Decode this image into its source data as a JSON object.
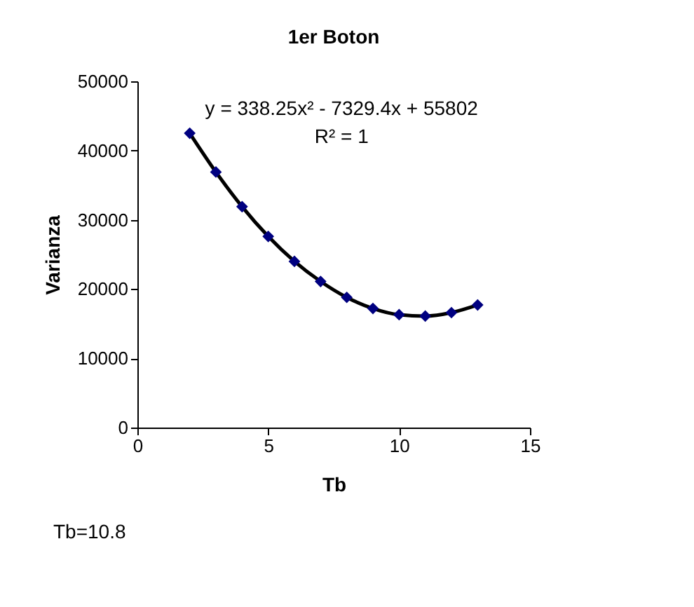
{
  "chart_data": {
    "type": "scatter",
    "title": "1er Boton",
    "xlabel": "Tb",
    "ylabel": "Varianza",
    "annotations": [
      "y = 338.25x² - 7329.4x + 55802",
      "R² = 1",
      "Tb=10.8"
    ],
    "series": [
      {
        "color": "#000080",
        "marker": "diamond",
        "x": [
          2,
          3,
          4,
          5,
          6,
          7,
          8,
          9,
          10,
          11,
          12,
          13
        ],
        "values": [
          42500,
          36900,
          31900,
          27600,
          24000,
          21100,
          18800,
          17200,
          16300,
          16100,
          16600,
          17700
        ]
      },
      {
        "type": "line",
        "color": "#000000",
        "line_style": "solid",
        "x": [
          2,
          3,
          4,
          5,
          6,
          7,
          8,
          9,
          10,
          11,
          12,
          13
        ],
        "values": [
          42500,
          36900,
          31900,
          27600,
          24000,
          21100,
          18800,
          17200,
          16300,
          16100,
          16600,
          17700
        ]
      }
    ],
    "xlim": [
      0,
      15
    ],
    "xticks": [
      0,
      5,
      10,
      15
    ],
    "ylim": [
      0,
      50000
    ],
    "yticks": [
      0,
      10000,
      20000,
      30000,
      40000,
      50000
    ],
    "grid": false
  }
}
